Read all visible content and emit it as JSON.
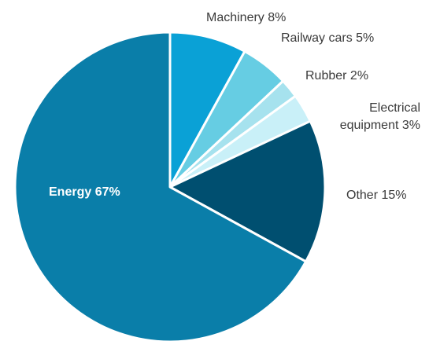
{
  "chart_data": {
    "type": "pie",
    "title": "",
    "slices": [
      {
        "name": "Machinery",
        "value": 8,
        "pct_label": "8%",
        "label_lines": [
          "Machinery 8%"
        ],
        "color": "#0aa1d6",
        "inside": false
      },
      {
        "name": "Railway cars",
        "value": 5,
        "pct_label": "5%",
        "label_lines": [
          "Railway cars 5%"
        ],
        "color": "#66cde3",
        "inside": false
      },
      {
        "name": "Rubber",
        "value": 2,
        "pct_label": "2%",
        "label_lines": [
          "Rubber 2%"
        ],
        "color": "#a6e2ee",
        "inside": false
      },
      {
        "name": "Electrical equipment",
        "value": 3,
        "pct_label": "3%",
        "label_lines": [
          "Electrical",
          "equipment 3%"
        ],
        "color": "#c9f0f8",
        "inside": false
      },
      {
        "name": "Other",
        "value": 15,
        "pct_label": "15%",
        "label_lines": [
          "Other 15%"
        ],
        "color": "#004f70",
        "inside": false
      },
      {
        "name": "Energy",
        "value": 67,
        "pct_label": "67%",
        "label_lines": [
          "Energy 67%"
        ],
        "color": "#0a7ea9",
        "inside": true
      }
    ],
    "legend": "none",
    "start": "top",
    "direction": "clockwise"
  }
}
